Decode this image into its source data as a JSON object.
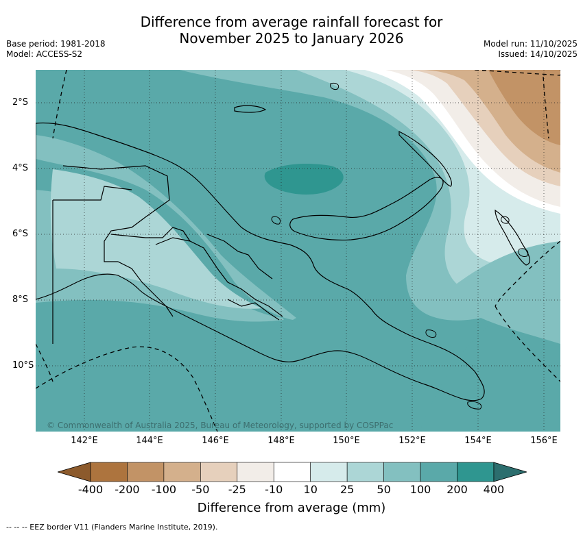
{
  "title_line1": "Difference from average rainfall forecast for",
  "title_line2": "November 2025 to January 2026",
  "meta_left": [
    "Base period: 1981-2018",
    "Model: ACCESS-S2"
  ],
  "meta_right": [
    "Model run: 11/10/2025",
    "Issued: 14/10/2025"
  ],
  "copyright": "© Commonwealth of Australia 2025, Bureau of Meteorology, supported by COSPPac",
  "y_ticks": [
    "2°S",
    "4°S",
    "6°S",
    "8°S",
    "10°S"
  ],
  "x_ticks": [
    "142°E",
    "144°E",
    "146°E",
    "148°E",
    "150°E",
    "152°E",
    "154°E",
    "156°E"
  ],
  "colorbar": {
    "title": "Difference from average (mm)",
    "labels": [
      "-400",
      "-200",
      "-100",
      "-50",
      "-25",
      "-10",
      "10",
      "25",
      "50",
      "100",
      "200",
      "400"
    ],
    "colors": [
      "#8c5a2c",
      "#ad743e",
      "#c29366",
      "#d4b08c",
      "#e6d0bc",
      "#f2ede8",
      "#ffffff",
      "#d6ebeb",
      "#acd6d6",
      "#83c0c0",
      "#5aa9a9",
      "#2f9690",
      "#2c6e6e"
    ]
  },
  "legend_text": "--  --  -- EEZ border V11 (Flanders Marine Institute, 2019)."
}
